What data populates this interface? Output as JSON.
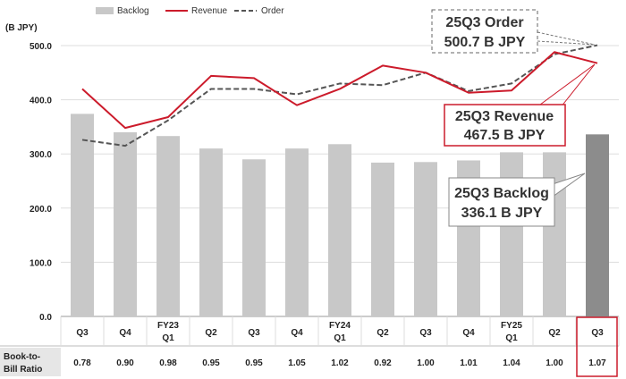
{
  "chart_data": {
    "type": "bar+line",
    "unit_label": "(B JPY)",
    "ylim": [
      0,
      500
    ],
    "yticks": [
      "0.0",
      "100.0",
      "200.0",
      "300.0",
      "400.0",
      "500.0"
    ],
    "ytick_values": [
      0,
      100,
      200,
      300,
      400,
      500
    ],
    "categories": [
      {
        "fy": "",
        "q": "Q3"
      },
      {
        "fy": "",
        "q": "Q4"
      },
      {
        "fy": "FY23",
        "q": "Q1"
      },
      {
        "fy": "",
        "q": "Q2"
      },
      {
        "fy": "",
        "q": "Q3"
      },
      {
        "fy": "",
        "q": "Q4"
      },
      {
        "fy": "FY24",
        "q": "Q1"
      },
      {
        "fy": "",
        "q": "Q2"
      },
      {
        "fy": "",
        "q": "Q3"
      },
      {
        "fy": "",
        "q": "Q4"
      },
      {
        "fy": "FY25",
        "q": "Q1"
      },
      {
        "fy": "",
        "q": "Q2"
      },
      {
        "fy": "",
        "q": "Q3"
      }
    ],
    "series": [
      {
        "name": "Backlog",
        "kind": "bar",
        "color": "#c8c8c8",
        "highlight_color": "#8c8c8c",
        "values": [
          374,
          340,
          333,
          310,
          290,
          310,
          318,
          284,
          285,
          288,
          303,
          303,
          336.1
        ]
      },
      {
        "name": "Revenue",
        "kind": "line",
        "color": "#cc1b2b",
        "values": [
          420,
          348,
          368,
          444,
          440,
          390,
          420,
          463,
          450,
          413,
          417,
          488,
          467.5
        ]
      },
      {
        "name": "Order",
        "kind": "dashed-line",
        "color": "#555555",
        "values": [
          326,
          315,
          362,
          420,
          420,
          410,
          430,
          427,
          450,
          416,
          430,
          484,
          500.7
        ]
      }
    ],
    "book_to_bill": {
      "label_line1": "Book-to-",
      "label_line2": "Bill Ratio",
      "values": [
        "0.78",
        "0.90",
        "0.98",
        "0.95",
        "0.95",
        "1.05",
        "1.02",
        "0.92",
        "1.00",
        "1.01",
        "1.04",
        "1.00",
        "1.07"
      ]
    },
    "callouts": {
      "order": {
        "line1": "25Q3 Order",
        "line2": "500.7 B JPY"
      },
      "revenue": {
        "line1": "25Q3 Revenue",
        "line2": "467.5 B JPY"
      },
      "backlog": {
        "line1": "25Q3 Backlog",
        "line2": "336.1 B JPY"
      }
    },
    "accent_color": "#cc1b2b"
  }
}
